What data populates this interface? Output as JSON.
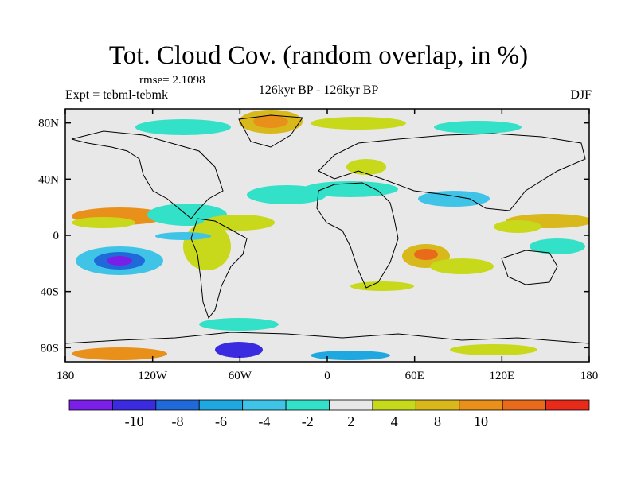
{
  "header": {
    "title": "Tot. Cloud Cov. (random overlap, in %)",
    "rmse": "rmse= 2.1098",
    "expt": "Expt = tebml-tebmk",
    "period": "126kyr BP - 126kyr BP",
    "season": "DJF"
  },
  "axes": {
    "x_ticks": [
      {
        "label": "180",
        "value": -180
      },
      {
        "label": "120W",
        "value": -120
      },
      {
        "label": "60W",
        "value": -60
      },
      {
        "label": "0",
        "value": 0
      },
      {
        "label": "60E",
        "value": 60
      },
      {
        "label": "120E",
        "value": 120
      },
      {
        "label": "180",
        "value": 180
      }
    ],
    "y_ticks": [
      {
        "label": "80N",
        "value": 80
      },
      {
        "label": "40N",
        "value": 40
      },
      {
        "label": "0",
        "value": 0
      },
      {
        "label": "40S",
        "value": -40
      },
      {
        "label": "80S",
        "value": -80
      }
    ],
    "lon_range": [
      -180,
      180
    ],
    "lat_range": [
      -90,
      90
    ]
  },
  "colorbar": {
    "colors": [
      "#7a1fe8",
      "#3a2be0",
      "#1f6ad8",
      "#1fa8e0",
      "#3fc4e8",
      "#33e0c8",
      "#e8e8e8",
      "#c8d81a",
      "#d8b81a",
      "#e8901a",
      "#e86a1a",
      "#e82a1a"
    ],
    "labels": [
      "-10",
      "-8",
      "-6",
      "-4",
      "-2",
      "2",
      "4",
      "8",
      "10"
    ]
  },
  "palette": {
    "neutral": "#e8e8e8",
    "land": "#000000"
  }
}
